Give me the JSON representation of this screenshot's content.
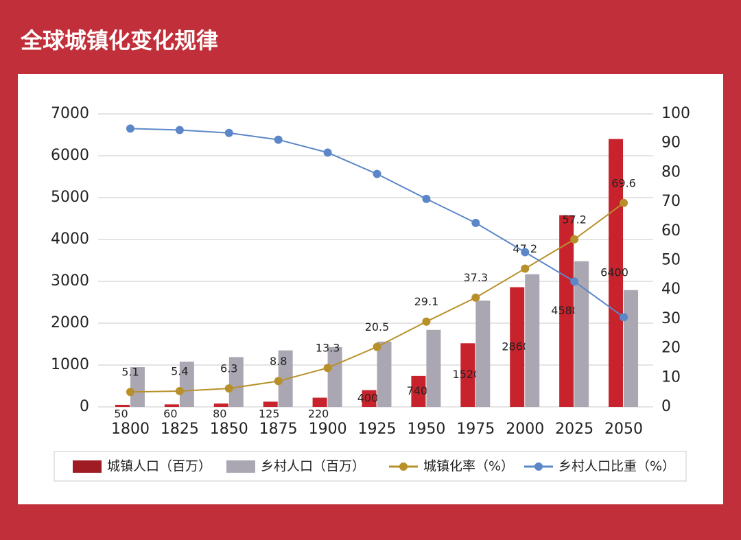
{
  "chart_data": {
    "type": "bar-line",
    "title": "全球城镇化变化规律",
    "categories": [
      "1800",
      "1825",
      "1850",
      "1875",
      "1900",
      "1925",
      "1950",
      "1975",
      "2000",
      "2025",
      "2050"
    ],
    "series": [
      {
        "name": "城镇人口（百万）",
        "type": "bar",
        "color": "#c8222c",
        "legend_color": "#a01c24",
        "values": [
          50,
          60,
          80,
          125,
          220,
          400,
          740,
          1520,
          2860,
          4580,
          6400
        ]
      },
      {
        "name": "乡村人口（百万）",
        "type": "bar",
        "color": "#aaa7b2",
        "values": [
          950,
          1080,
          1190,
          1350,
          1430,
          1560,
          1840,
          2540,
          3170,
          3480,
          2790
        ]
      },
      {
        "name": "城镇化率（%）",
        "type": "line",
        "axis": "y2",
        "color": "#b8902a",
        "values": [
          5.1,
          5.4,
          6.3,
          8.8,
          13.3,
          20.5,
          29.1,
          37.3,
          47.2,
          57.2,
          69.6
        ]
      },
      {
        "name": "乡村人口比重（%）",
        "type": "line",
        "axis": "y2",
        "color": "#5b87c8",
        "values": [
          95,
          94.5,
          93.5,
          91.2,
          86.8,
          79.5,
          71,
          62.8,
          52.8,
          42.8,
          30.6
        ]
      }
    ],
    "ylim": [
      0,
      7000
    ],
    "yticks": [
      0,
      1000,
      2000,
      3000,
      4000,
      5000,
      6000,
      7000
    ],
    "y2lim": [
      0,
      100
    ],
    "y2ticks": [
      0,
      10,
      20,
      30,
      40,
      50,
      60,
      70,
      80,
      90,
      100
    ],
    "grid": true,
    "legend": "bottom"
  }
}
